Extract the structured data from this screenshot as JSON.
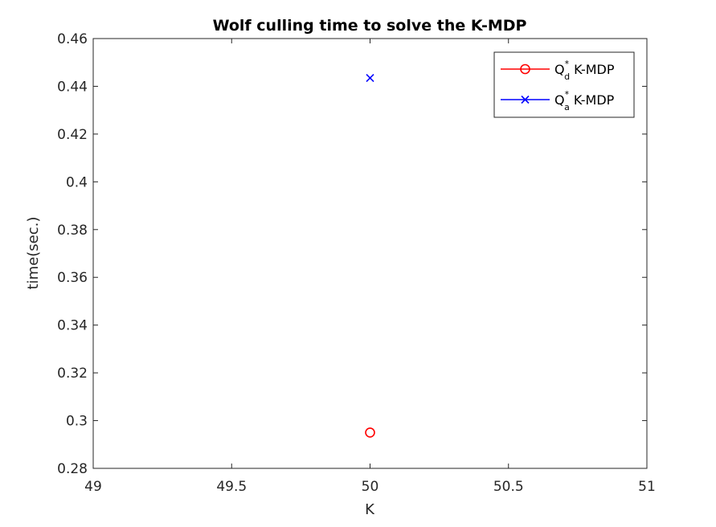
{
  "chart_data": {
    "type": "scatter",
    "title": "Wolf culling time to solve the K-MDP",
    "xlabel": "K",
    "ylabel": "time(sec.)",
    "xlim": [
      49,
      51
    ],
    "ylim": [
      0.28,
      0.46
    ],
    "x_ticks": [
      49,
      49.5,
      50,
      50.5,
      51
    ],
    "x_tick_labels": [
      "49",
      "49.5",
      "50",
      "50.5",
      "51"
    ],
    "y_ticks": [
      0.28,
      0.3,
      0.32,
      0.34,
      0.36,
      0.38,
      0.4,
      0.42,
      0.44,
      0.46
    ],
    "y_tick_labels": [
      "0.28",
      "0.3",
      "0.32",
      "0.34",
      "0.36",
      "0.38",
      "0.4",
      "0.42",
      "0.44",
      "0.46"
    ],
    "grid": false,
    "legend_position": "top-right",
    "series": [
      {
        "name_base": "Q",
        "name_sub": "d",
        "name_sup": "*",
        "name_suffix": " K-MDP",
        "color": "#ff0000",
        "marker": "circle",
        "points": [
          {
            "x": 50,
            "y": 0.295
          }
        ]
      },
      {
        "name_base": "Q",
        "name_sub": "a",
        "name_sup": "*",
        "name_suffix": " K-MDP",
        "color": "#0000ff",
        "marker": "cross",
        "points": [
          {
            "x": 50,
            "y": 0.4435
          }
        ]
      }
    ]
  }
}
